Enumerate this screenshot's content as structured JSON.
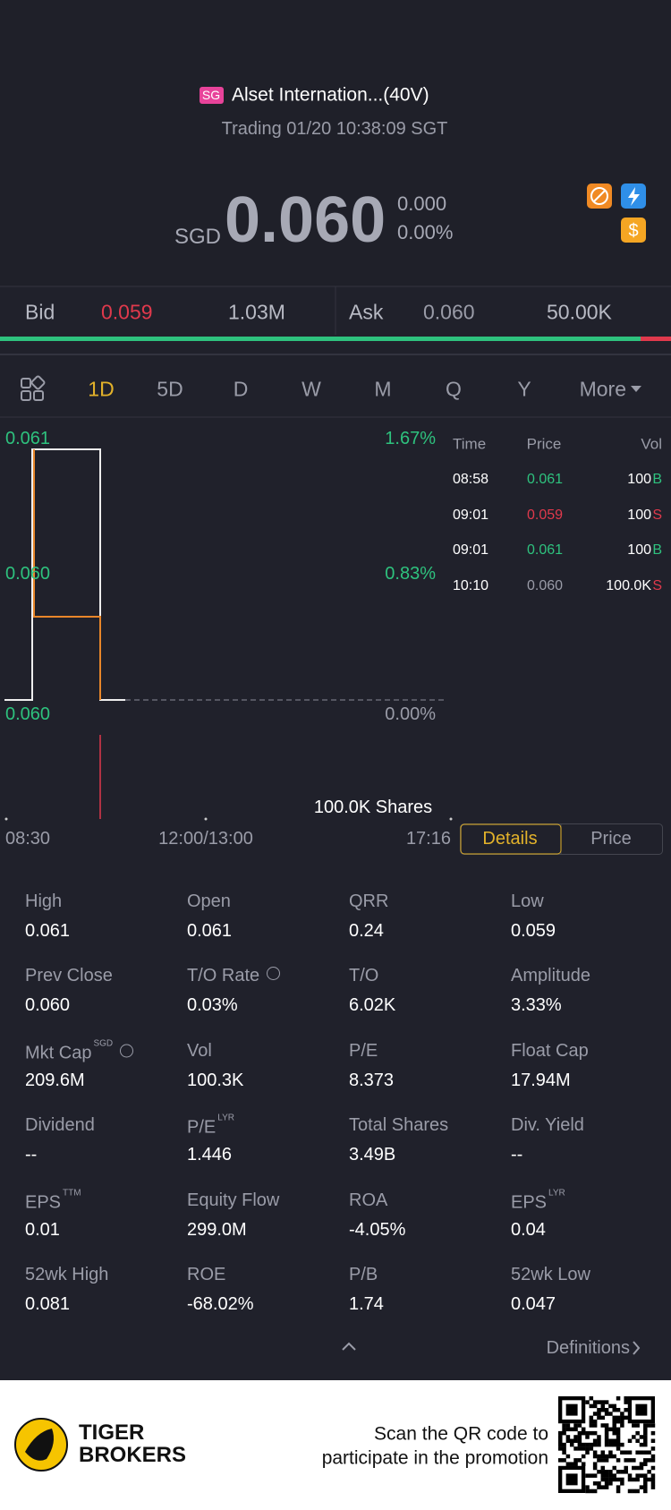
{
  "header": {
    "market_badge": "SG",
    "name": "Alset Internation...(40V)",
    "status": "Trading 01/20 10:38:09 SGT"
  },
  "quote": {
    "currency": "SGD",
    "price": "0.060",
    "change": "0.000",
    "change_percent": "0.00%"
  },
  "order_book": {
    "bid_label": "Bid",
    "bid_price": "0.059",
    "bid_size": "1.03M",
    "ask_label": "Ask",
    "ask_price": "0.060",
    "ask_size": "50.00K"
  },
  "periods": {
    "items": [
      "1D",
      "5D",
      "D",
      "W",
      "M",
      "Q",
      "Y"
    ],
    "more": "More",
    "selected": 0
  },
  "chart": {
    "price_labels": [
      "0.061",
      "0.060",
      "0.060"
    ],
    "percent_labels": [
      "1.67%",
      "0.83%",
      "0.00%"
    ],
    "volume_label": "100.0K Shares",
    "time_labels": [
      "08:30",
      "12:00/13:00",
      "17:16"
    ]
  },
  "trades": {
    "headers": [
      "Time",
      "Price",
      "Vol"
    ],
    "rows": [
      {
        "time": "08:58",
        "price": "0.061",
        "volume": "100",
        "side": "B"
      },
      {
        "time": "09:01",
        "price": "0.059",
        "volume": "100",
        "side": "S"
      },
      {
        "time": "09:01",
        "price": "0.061",
        "volume": "100",
        "side": "B"
      },
      {
        "time": "10:10",
        "price": "0.060",
        "volume": "100.0K",
        "side": "S"
      }
    ]
  },
  "tabs": {
    "items": [
      "Details",
      "Price"
    ],
    "selected": 0
  },
  "stats": [
    {
      "label": "High",
      "value": "0.061"
    },
    {
      "label": "Open",
      "value": "0.061"
    },
    {
      "label": "QRR",
      "value": "0.24"
    },
    {
      "label": "Low",
      "value": "0.059"
    },
    {
      "label": "Prev Close",
      "value": "0.060"
    },
    {
      "label": "T/O Rate",
      "value": "0.03%"
    },
    {
      "label": "T/O",
      "value": "6.02K"
    },
    {
      "label": "Amplitude",
      "value": "3.33%"
    },
    {
      "label": "Mkt Cap",
      "sup": "SGD",
      "value": "209.6M"
    },
    {
      "label": "Vol",
      "value": "100.3K"
    },
    {
      "label": "P/E",
      "value": "8.373"
    },
    {
      "label": "Float Cap",
      "value": "17.94M"
    },
    {
      "label": "Dividend",
      "value": "--"
    },
    {
      "label": "P/E",
      "sup": "LYR",
      "value": "1.446"
    },
    {
      "label": "Total Shares",
      "value": "3.49B"
    },
    {
      "label": "Div. Yield",
      "value": "--"
    },
    {
      "label": "EPS",
      "sup": "TTM",
      "value": "0.01"
    },
    {
      "label": "Equity Flow",
      "value": "299.0M"
    },
    {
      "label": "ROA",
      "value": "-4.05%"
    },
    {
      "label": "EPS",
      "sup": "LYR",
      "value": "0.04"
    },
    {
      "label": "52wk High",
      "value": "0.081"
    },
    {
      "label": "ROE",
      "value": "-68.02%"
    },
    {
      "label": "P/B",
      "value": "1.74"
    },
    {
      "label": "52wk Low",
      "value": "0.047"
    }
  ],
  "footer": {
    "more_link": "Definitions"
  },
  "promo": {
    "brand": [
      "TIGER",
      "BROKERS"
    ],
    "text": [
      "Scan the QR code to",
      "participate in the promotion"
    ]
  }
}
